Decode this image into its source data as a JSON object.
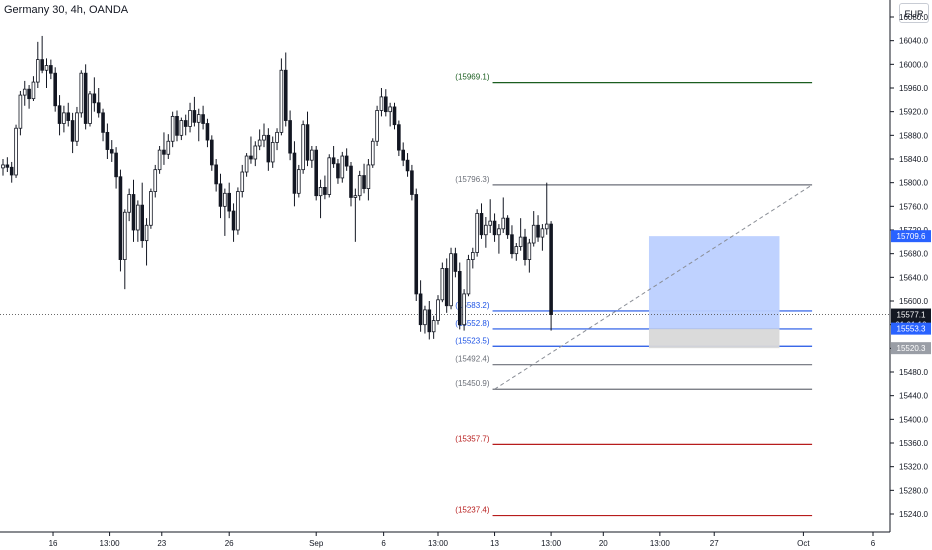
{
  "header": {
    "symbol_title": "Germany 30, 4h, OANDA",
    "currency": "EUR"
  },
  "colors": {
    "bull": "#131722",
    "bear": "#131722",
    "bull_fill": "#ffffff",
    "fib_green": "#1b5e20",
    "fib_red": "#b71c1c",
    "fib_blue": "#1e53e5",
    "fib_gray": "#6b6f78",
    "target_zone": "#bcd0ff",
    "stop_zone": "#d8d8d8"
  },
  "chart_data": {
    "type": "candlestick",
    "title": "Germany 30, 4h, OANDA",
    "y_axis": {
      "min": 15215,
      "max": 16080,
      "ticks": [
        16080,
        16040,
        16000,
        15960,
        15920,
        15880,
        15840,
        15800,
        15760,
        15720,
        15680,
        15640,
        15600,
        15560,
        15520,
        15480,
        15440,
        15400,
        15360,
        15320,
        15280,
        15240
      ],
      "tick_labels": [
        "16080.0",
        "16040.0",
        "16000.0",
        "15960.0",
        "15920.0",
        "15880.0",
        "15840.0",
        "15800.0",
        "15760.0",
        "15720.0",
        "15680.0",
        "15640.0",
        "15600.0",
        "15560.0",
        "15520.0",
        "15480.0",
        "15440.0",
        "15400.0",
        "15360.0",
        "15320.0",
        "15280.0",
        "15240.0"
      ]
    },
    "x_axis": {
      "labels": [
        {
          "text": "16",
          "i": 11.5
        },
        {
          "text": "13:00",
          "i": 24.5
        },
        {
          "text": "23",
          "i": 36.5
        },
        {
          "text": "26",
          "i": 52
        },
        {
          "text": "Sep",
          "i": 72
        },
        {
          "text": "6",
          "i": 87.5
        },
        {
          "text": "13:00",
          "i": 100
        },
        {
          "text": "13",
          "i": 113
        },
        {
          "text": "13:00",
          "i": 126
        },
        {
          "text": "20",
          "i": 138
        },
        {
          "text": "13:00",
          "i": 151
        },
        {
          "text": "27",
          "i": 163.5
        },
        {
          "text": "Oct",
          "i": 184
        },
        {
          "text": "6",
          "i": 200
        }
      ]
    },
    "candles": [
      [
        15825,
        15840,
        15812,
        15830
      ],
      [
        15830,
        15843,
        15818,
        15826
      ],
      [
        15826,
        15835,
        15800,
        15813
      ],
      [
        15813,
        15898,
        15808,
        15892
      ],
      [
        15892,
        15955,
        15880,
        15948
      ],
      [
        15948,
        15972,
        15930,
        15958
      ],
      [
        15958,
        15965,
        15925,
        15942
      ],
      [
        15942,
        15980,
        15938,
        15970
      ],
      [
        15970,
        16038,
        15960,
        16008
      ],
      [
        16008,
        16048,
        15985,
        15990
      ],
      [
        15990,
        16010,
        15960,
        15998
      ],
      [
        15998,
        16008,
        15975,
        15985
      ],
      [
        15985,
        15995,
        15920,
        15930
      ],
      [
        15930,
        15948,
        15880,
        15900
      ],
      [
        15900,
        15930,
        15885,
        15918
      ],
      [
        15918,
        15935,
        15895,
        15905
      ],
      [
        15905,
        15918,
        15850,
        15870
      ],
      [
        15870,
        15928,
        15862,
        15918
      ],
      [
        15918,
        15990,
        15910,
        15985
      ],
      [
        15985,
        16000,
        15890,
        15900
      ],
      [
        15900,
        15955,
        15895,
        15950
      ],
      [
        15950,
        15978,
        15920,
        15935
      ],
      [
        15935,
        15960,
        15910,
        15918
      ],
      [
        15918,
        15925,
        15870,
        15885
      ],
      [
        15885,
        15900,
        15840,
        15856
      ],
      [
        15856,
        15872,
        15835,
        15850
      ],
      [
        15850,
        15860,
        15790,
        15810
      ],
      [
        15810,
        15822,
        15650,
        15670
      ],
      [
        15670,
        15755,
        15620,
        15750
      ],
      [
        15750,
        15790,
        15735,
        15780
      ],
      [
        15780,
        15805,
        15700,
        15720
      ],
      [
        15720,
        15770,
        15700,
        15762
      ],
      [
        15762,
        15800,
        15690,
        15702
      ],
      [
        15702,
        15740,
        15660,
        15728
      ],
      [
        15728,
        15790,
        15722,
        15785
      ],
      [
        15785,
        15830,
        15775,
        15822
      ],
      [
        15822,
        15862,
        15815,
        15855
      ],
      [
        15855,
        15885,
        15830,
        15848
      ],
      [
        15848,
        15882,
        15840,
        15870
      ],
      [
        15870,
        15920,
        15860,
        15912
      ],
      [
        15912,
        15922,
        15870,
        15880
      ],
      [
        15880,
        15910,
        15872,
        15905
      ],
      [
        15905,
        15915,
        15880,
        15895
      ],
      [
        15895,
        15935,
        15885,
        15922
      ],
      [
        15922,
        15945,
        15895,
        15902
      ],
      [
        15902,
        15925,
        15870,
        15915
      ],
      [
        15915,
        15930,
        15890,
        15900
      ],
      [
        15900,
        15908,
        15860,
        15872
      ],
      [
        15872,
        15880,
        15820,
        15830
      ],
      [
        15830,
        15840,
        15785,
        15798
      ],
      [
        15798,
        15815,
        15740,
        15760
      ],
      [
        15760,
        15790,
        15710,
        15782
      ],
      [
        15782,
        15800,
        15740,
        15752
      ],
      [
        15752,
        15765,
        15700,
        15720
      ],
      [
        15720,
        15792,
        15712,
        15785
      ],
      [
        15785,
        15830,
        15775,
        15818
      ],
      [
        15818,
        15850,
        15810,
        15845
      ],
      [
        15845,
        15878,
        15832,
        15840
      ],
      [
        15840,
        15870,
        15828,
        15862
      ],
      [
        15862,
        15890,
        15855,
        15872
      ],
      [
        15872,
        15900,
        15860,
        15880
      ],
      [
        15880,
        15892,
        15820,
        15835
      ],
      [
        15835,
        15878,
        15825,
        15868
      ],
      [
        15868,
        15892,
        15855,
        15885
      ],
      [
        15885,
        16010,
        15880,
        15990
      ],
      [
        15990,
        16020,
        15895,
        15905
      ],
      [
        15905,
        15922,
        15838,
        15850
      ],
      [
        15850,
        15870,
        15760,
        15782
      ],
      [
        15782,
        15830,
        15775,
        15822
      ],
      [
        15822,
        15905,
        15815,
        15898
      ],
      [
        15898,
        15920,
        15828,
        15838
      ],
      [
        15838,
        15862,
        15825,
        15855
      ],
      [
        15855,
        15862,
        15770,
        15778
      ],
      [
        15778,
        15805,
        15740,
        15792
      ],
      [
        15792,
        15812,
        15772,
        15780
      ],
      [
        15780,
        15848,
        15775,
        15842
      ],
      [
        15842,
        15862,
        15825,
        15832
      ],
      [
        15832,
        15840,
        15798,
        15808
      ],
      [
        15808,
        15852,
        15800,
        15845
      ],
      [
        15845,
        15858,
        15820,
        15828
      ],
      [
        15828,
        15835,
        15760,
        15775
      ],
      [
        15775,
        15790,
        15700,
        15778
      ],
      [
        15778,
        15820,
        15770,
        15812
      ],
      [
        15812,
        15832,
        15782,
        15790
      ],
      [
        15790,
        15840,
        15770,
        15830
      ],
      [
        15830,
        15875,
        15825,
        15870
      ],
      [
        15870,
        15930,
        15862,
        15922
      ],
      [
        15922,
        15960,
        15912,
        15945
      ],
      [
        15945,
        15958,
        15912,
        15920
      ],
      [
        15920,
        15935,
        15895,
        15928
      ],
      [
        15928,
        15935,
        15890,
        15898
      ],
      [
        15898,
        15905,
        15845,
        15855
      ],
      [
        15855,
        15868,
        15828,
        15838
      ],
      [
        15838,
        15850,
        15810,
        15820
      ],
      [
        15820,
        15830,
        15770,
        15780
      ],
      [
        15780,
        15790,
        15600,
        15612
      ],
      [
        15612,
        15635,
        15548,
        15560
      ],
      [
        15560,
        15592,
        15545,
        15585
      ],
      [
        15585,
        15600,
        15535,
        15548
      ],
      [
        15548,
        15575,
        15536,
        15567
      ],
      [
        15567,
        15610,
        15560,
        15602
      ],
      [
        15602,
        15665,
        15598,
        15655
      ],
      [
        15655,
        15672,
        15580,
        15592
      ],
      [
        15592,
        15690,
        15586,
        15680
      ],
      [
        15680,
        15690,
        15640,
        15650
      ],
      [
        15650,
        15665,
        15552,
        15560
      ],
      [
        15560,
        15620,
        15550,
        15612
      ],
      [
        15612,
        15678,
        15608,
        15670
      ],
      [
        15670,
        15690,
        15655,
        15682
      ],
      [
        15682,
        15755,
        15675,
        15748
      ],
      [
        15748,
        15765,
        15705,
        15712
      ],
      [
        15712,
        15742,
        15690,
        15728
      ],
      [
        15728,
        15772,
        15715,
        15735
      ],
      [
        15735,
        15748,
        15700,
        15712
      ],
      [
        15712,
        15730,
        15680,
        15722
      ],
      [
        15722,
        15775,
        15715,
        15740
      ],
      [
        15740,
        15745,
        15705,
        15712
      ],
      [
        15712,
        15728,
        15672,
        15680
      ],
      [
        15680,
        15698,
        15668,
        15692
      ],
      [
        15692,
        15740,
        15685,
        15708
      ],
      [
        15708,
        15722,
        15660,
        15670
      ],
      [
        15670,
        15705,
        15648,
        15698
      ],
      [
        15698,
        15752,
        15692,
        15728
      ],
      [
        15728,
        15745,
        15700,
        15708
      ],
      [
        15708,
        15730,
        15685,
        15722
      ],
      [
        15722,
        15800,
        15712,
        15730
      ],
      [
        15730,
        15735,
        15550,
        15577.1
      ]
    ],
    "last_price": 15577.1,
    "annotations": {
      "fib_levels": [
        {
          "value": 15969.1,
          "label": "(15969.1)",
          "color": "fib_green",
          "x_start_i": 113
        },
        {
          "value": 15796.3,
          "label": "(15796.3)",
          "color": "fib_gray",
          "x_start_i": 113
        },
        {
          "value": 15583.2,
          "label": "(15583.2)",
          "color": "fib_blue",
          "x_start_i": 113
        },
        {
          "value": 15552.8,
          "label": "(15552.8)",
          "color": "fib_blue",
          "x_start_i": 113
        },
        {
          "value": 15523.5,
          "label": "(15523.5)",
          "color": "fib_blue",
          "x_start_i": 113
        },
        {
          "value": 15492.4,
          "label": "(15492.4)",
          "color": "fib_gray",
          "x_start_i": 113
        },
        {
          "value": 15450.9,
          "label": "(15450.9)",
          "color": "fib_gray",
          "x_start_i": 113
        },
        {
          "value": 15357.7,
          "label": "(15357.7)",
          "color": "fib_red",
          "x_start_i": 113
        },
        {
          "value": 15237.4,
          "label": "(15237.4)",
          "color": "fib_red",
          "x_start_i": 113
        }
      ],
      "fib_end_i": 186,
      "trend_line": {
        "from_i": 113,
        "from_value": 15450.9,
        "to_i": 186,
        "to_value": 15796.3
      },
      "position": {
        "from_i": 148.5,
        "to_i": 178.5,
        "entry": 15553.3,
        "target": 15709.6,
        "stop": 15520.3
      },
      "price_labels": [
        {
          "value": 15709.6,
          "text": "15709.6",
          "style": "blue"
        },
        {
          "value": 15577.1,
          "text": "15577.1",
          "sub": "01:01:10",
          "style": "dark"
        },
        {
          "value": 15553.3,
          "text": "15553.3",
          "style": "blue"
        },
        {
          "value": 15520.3,
          "text": "15520.3",
          "style": "gray"
        }
      ]
    },
    "grid": false,
    "legend": "none"
  }
}
